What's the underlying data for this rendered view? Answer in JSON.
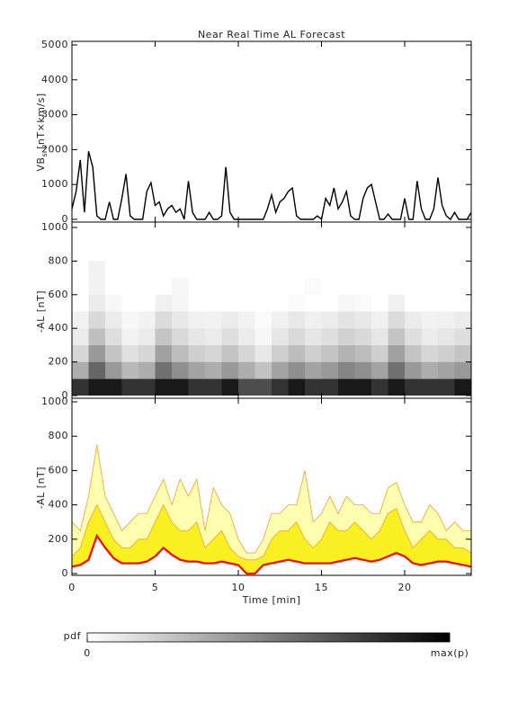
{
  "chart_data": [
    {
      "type": "line",
      "title": "Near Real Time AL Forecast",
      "ylabel": "VB",
      "ylabel_sub": "s",
      "ylabel_unit": "[nT×km/s]",
      "xlim": [
        0,
        24
      ],
      "xticks": [
        0,
        5,
        10,
        15,
        20
      ],
      "xtick_labels": false,
      "ylim": [
        0,
        5000
      ],
      "yticks": [
        0,
        1000,
        2000,
        3000,
        4000,
        5000
      ],
      "x": [
        0,
        0.25,
        0.5,
        0.75,
        1,
        1.25,
        1.5,
        1.75,
        2,
        2.25,
        2.5,
        2.75,
        3,
        3.25,
        3.5,
        3.75,
        4,
        4.25,
        4.5,
        4.75,
        5,
        5.25,
        5.5,
        5.75,
        6,
        6.25,
        6.5,
        6.75,
        7,
        7.25,
        7.5,
        7.75,
        8,
        8.25,
        8.5,
        8.75,
        9,
        9.25,
        9.5,
        9.75,
        10,
        10.25,
        10.5,
        10.75,
        11,
        11.25,
        11.5,
        11.75,
        12,
        12.25,
        12.5,
        12.75,
        13,
        13.25,
        13.5,
        13.75,
        14,
        14.25,
        14.5,
        14.75,
        15,
        15.25,
        15.5,
        15.75,
        16,
        16.25,
        16.5,
        16.75,
        17,
        17.25,
        17.5,
        17.75,
        18,
        18.25,
        18.5,
        18.75,
        19,
        19.25,
        19.5,
        19.75,
        20,
        20.25,
        20.5,
        20.75,
        21,
        21.25,
        21.5,
        21.75,
        22,
        22.25,
        22.5,
        22.75,
        23,
        23.25,
        23.5,
        23.75,
        24
      ],
      "series": [
        {
          "color": "#000000",
          "values": [
            300,
            800,
            1700,
            200,
            1950,
            1500,
            100,
            0,
            0,
            500,
            0,
            0,
            600,
            1300,
            100,
            0,
            0,
            0,
            800,
            1050,
            400,
            500,
            100,
            300,
            400,
            200,
            300,
            0,
            1100,
            200,
            0,
            0,
            0,
            200,
            0,
            0,
            100,
            1500,
            200,
            0,
            0,
            0,
            0,
            0,
            0,
            0,
            0,
            300,
            700,
            200,
            500,
            600,
            800,
            900,
            100,
            0,
            0,
            0,
            0,
            100,
            0,
            600,
            400,
            900,
            300,
            500,
            800,
            100,
            0,
            0,
            600,
            900,
            1000,
            500,
            0,
            0,
            150,
            0,
            0,
            0,
            600,
            0,
            0,
            1100,
            300,
            0,
            0,
            300,
            1200,
            400,
            100,
            0,
            200,
            0,
            0,
            0,
            200
          ]
        }
      ]
    },
    {
      "type": "heatmap",
      "ylabel": "-AL [nT]",
      "xlim": [
        0,
        24
      ],
      "xticks": [
        0,
        5,
        10,
        15,
        20
      ],
      "xtick_labels": false,
      "ylim": [
        0,
        1000
      ],
      "yticks": [
        0,
        200,
        400,
        600,
        800,
        1000
      ],
      "x_bins": [
        0,
        1,
        2,
        3,
        4,
        5,
        6,
        7,
        8,
        9,
        10,
        11,
        12,
        13,
        14,
        15,
        16,
        17,
        18,
        19,
        20,
        21,
        22,
        23,
        24
      ],
      "y_bins": [
        0,
        100,
        200,
        300,
        400,
        500,
        600,
        700,
        800
      ],
      "z": [
        [
          0.8,
          0.9,
          0.9,
          0.8,
          0.8,
          0.9,
          0.9,
          0.8,
          0.8,
          0.9,
          0.7,
          0.7,
          0.8,
          0.9,
          0.8,
          0.8,
          0.9,
          0.9,
          0.8,
          0.9,
          0.8,
          0.8,
          0.8,
          0.9
        ],
        [
          0.32,
          0.6,
          0.4,
          0.28,
          0.32,
          0.56,
          0.44,
          0.36,
          0.32,
          0.4,
          0.32,
          0.24,
          0.36,
          0.44,
          0.36,
          0.4,
          0.48,
          0.44,
          0.36,
          0.56,
          0.4,
          0.32,
          0.36,
          0.4
        ],
        [
          0.16,
          0.4,
          0.23,
          0.12,
          0.16,
          0.37,
          0.26,
          0.19,
          0.16,
          0.23,
          0.16,
          0.09,
          0.19,
          0.26,
          0.19,
          0.23,
          0.3,
          0.26,
          0.19,
          0.37,
          0.23,
          0.16,
          0.19,
          0.23
        ],
        [
          0.08,
          0.25,
          0.13,
          0.05,
          0.08,
          0.23,
          0.15,
          0.1,
          0.08,
          0.13,
          0.08,
          0.03,
          0.1,
          0.15,
          0.1,
          0.13,
          0.18,
          0.15,
          0.1,
          0.23,
          0.13,
          0.08,
          0.1,
          0.13
        ],
        [
          0.05,
          0.15,
          0.08,
          0.03,
          0.05,
          0.14,
          0.09,
          0.06,
          0.05,
          0.08,
          0.05,
          0.02,
          0.06,
          0.09,
          0.06,
          0.08,
          0.11,
          0.09,
          0.06,
          0.14,
          0.08,
          0.05,
          0.06,
          0.08
        ],
        [
          0,
          0.08,
          0.03,
          0,
          0,
          0.06,
          0.04,
          0,
          0,
          0,
          0,
          0,
          0,
          0.02,
          0,
          0,
          0.03,
          0.02,
          0,
          0.06,
          0,
          0,
          0,
          0
        ],
        [
          0,
          0.05,
          0,
          0,
          0,
          0,
          0.03,
          0,
          0,
          0,
          0,
          0,
          0,
          0,
          0.02,
          0,
          0,
          0,
          0,
          0,
          0,
          0,
          0,
          0
        ],
        [
          0,
          0.05,
          0,
          0,
          0,
          0,
          0,
          0,
          0,
          0,
          0,
          0,
          0,
          0,
          0,
          0,
          0,
          0,
          0,
          0,
          0,
          0,
          0,
          0
        ]
      ],
      "colorbar": {
        "label": "pdf",
        "zlim": [
          0,
          1
        ],
        "ticks": [
          0,
          {
            "value": 1,
            "label": "max(p)"
          }
        ],
        "colors": [
          "#ffffff",
          "#000000"
        ]
      }
    },
    {
      "type": "band",
      "ylabel": "-AL [nT]",
      "xlabel": "Time [min]",
      "xlim": [
        0,
        24
      ],
      "xticks": [
        0,
        5,
        10,
        15,
        20
      ],
      "xtick_labels": true,
      "ylim": [
        0,
        1000
      ],
      "yticks": [
        0,
        200,
        400,
        600,
        800,
        1000
      ],
      "x": [
        0,
        0.5,
        1,
        1.5,
        2,
        2.5,
        3,
        3.5,
        4,
        4.5,
        5,
        5.5,
        6,
        6.5,
        7,
        7.5,
        8,
        8.5,
        9,
        9.5,
        10,
        10.5,
        11,
        11.5,
        12,
        12.5,
        13,
        13.5,
        14,
        14.5,
        15,
        15.5,
        16,
        16.5,
        17,
        17.5,
        18,
        18.5,
        19,
        19.5,
        20,
        20.5,
        21,
        21.5,
        22,
        22.5,
        23,
        23.5,
        24
      ],
      "series": [
        {
          "color": "#f0a030",
          "fill": "#ffffb0",
          "values": [
            300,
            250,
            450,
            750,
            450,
            350,
            250,
            300,
            350,
            350,
            450,
            550,
            400,
            550,
            450,
            550,
            250,
            500,
            400,
            350,
            200,
            120,
            120,
            200,
            350,
            350,
            400,
            400,
            600,
            300,
            350,
            450,
            350,
            450,
            400,
            400,
            350,
            350,
            500,
            530,
            400,
            300,
            300,
            400,
            350,
            250,
            300,
            250,
            250
          ]
        },
        {
          "color": "#f0a030",
          "fill": "#f8f020",
          "values": [
            100,
            150,
            300,
            400,
            300,
            200,
            150,
            150,
            200,
            200,
            300,
            400,
            300,
            250,
            250,
            300,
            150,
            200,
            250,
            150,
            100,
            80,
            80,
            100,
            200,
            250,
            250,
            300,
            200,
            150,
            200,
            300,
            250,
            250,
            300,
            250,
            200,
            250,
            350,
            380,
            250,
            150,
            200,
            250,
            200,
            200,
            150,
            150,
            120
          ]
        },
        {
          "color": "#ff0000",
          "fill": "#ffffff",
          "values": [
            40,
            50,
            80,
            220,
            150,
            90,
            60,
            60,
            60,
            70,
            100,
            150,
            110,
            80,
            70,
            70,
            60,
            60,
            70,
            60,
            50,
            0,
            0,
            50,
            60,
            70,
            80,
            70,
            60,
            60,
            60,
            60,
            70,
            80,
            90,
            80,
            70,
            80,
            100,
            120,
            100,
            60,
            50,
            60,
            70,
            70,
            60,
            50,
            40
          ]
        }
      ]
    }
  ]
}
